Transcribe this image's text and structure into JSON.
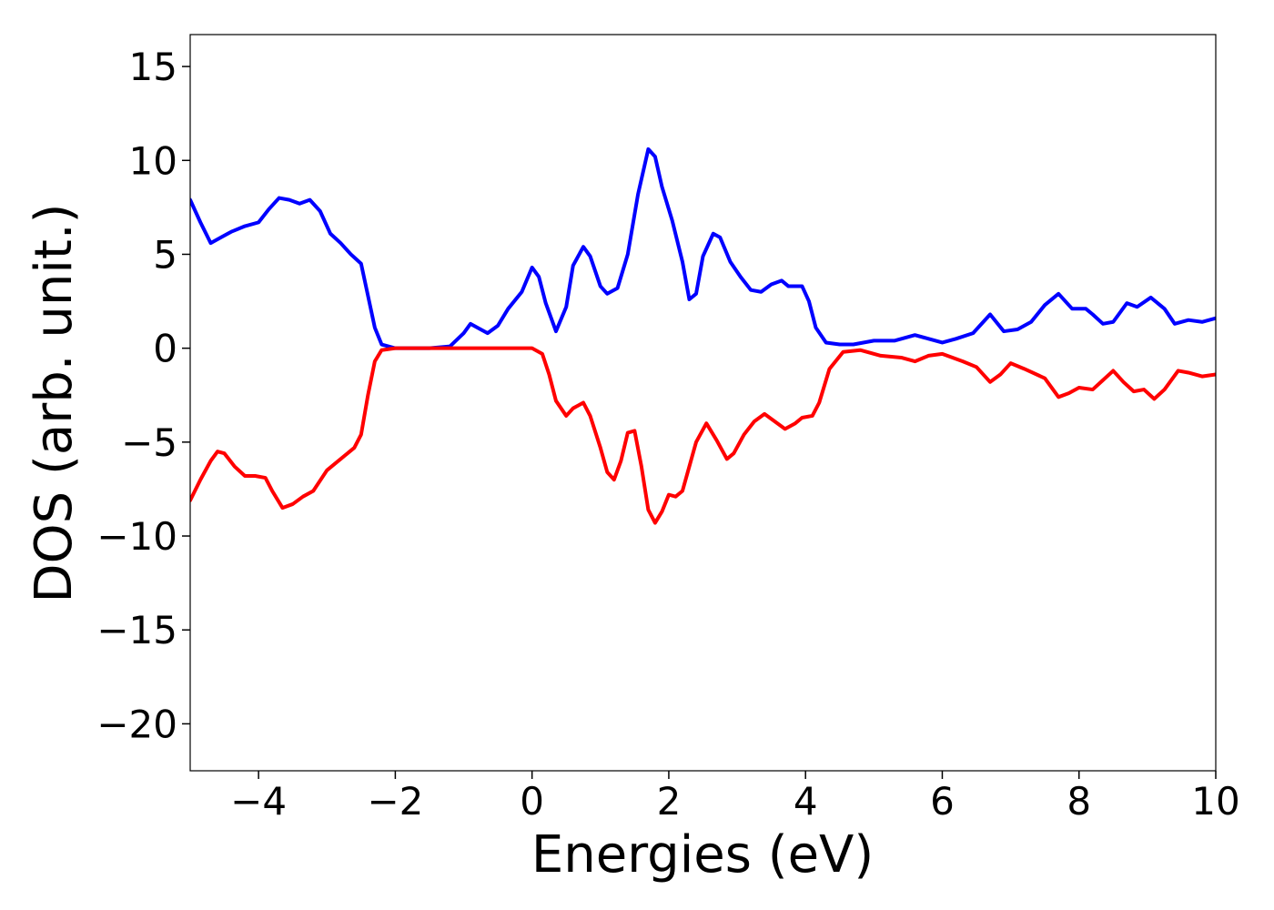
{
  "chart_data": {
    "type": "line",
    "title": "",
    "xlabel": "Energies (eV)",
    "ylabel": "DOS (arb. unit.)",
    "xlim": [
      -5,
      10
    ],
    "ylim": [
      -22.5,
      16.7
    ],
    "grid": false,
    "legend": "none",
    "xticks": [
      -4,
      -2,
      0,
      2,
      4,
      6,
      8,
      10
    ],
    "xtick_labels": [
      "−4",
      "−2",
      "0",
      "2",
      "4",
      "6",
      "8",
      "10"
    ],
    "yticks": [
      15,
      10,
      5,
      0,
      -5,
      -10,
      -15,
      -20
    ],
    "ytick_labels": [
      "15",
      "10",
      "5",
      "0",
      "−5",
      "−10",
      "−15",
      "−20"
    ],
    "series": [
      {
        "color": "#0000ff",
        "points": [
          [
            -5.0,
            7.9
          ],
          [
            -4.85,
            6.7
          ],
          [
            -4.7,
            5.6
          ],
          [
            -4.55,
            5.9
          ],
          [
            -4.4,
            6.2
          ],
          [
            -4.2,
            6.5
          ],
          [
            -4.0,
            6.7
          ],
          [
            -3.85,
            7.4
          ],
          [
            -3.7,
            8.0
          ],
          [
            -3.55,
            7.9
          ],
          [
            -3.4,
            7.7
          ],
          [
            -3.25,
            7.9
          ],
          [
            -3.1,
            7.3
          ],
          [
            -2.95,
            6.1
          ],
          [
            -2.8,
            5.6
          ],
          [
            -2.65,
            5.0
          ],
          [
            -2.5,
            4.5
          ],
          [
            -2.4,
            2.8
          ],
          [
            -2.3,
            1.1
          ],
          [
            -2.2,
            0.2
          ],
          [
            -2.0,
            0.0
          ],
          [
            -1.5,
            0.0
          ],
          [
            -1.2,
            0.1
          ],
          [
            -1.0,
            0.8
          ],
          [
            -0.9,
            1.3
          ],
          [
            -0.8,
            1.1
          ],
          [
            -0.65,
            0.8
          ],
          [
            -0.5,
            1.2
          ],
          [
            -0.35,
            2.1
          ],
          [
            -0.15,
            3.0
          ],
          [
            0.0,
            4.3
          ],
          [
            0.1,
            3.8
          ],
          [
            0.2,
            2.4
          ],
          [
            0.35,
            0.9
          ],
          [
            0.5,
            2.2
          ],
          [
            0.6,
            4.4
          ],
          [
            0.75,
            5.4
          ],
          [
            0.85,
            4.9
          ],
          [
            1.0,
            3.3
          ],
          [
            1.1,
            2.9
          ],
          [
            1.25,
            3.2
          ],
          [
            1.4,
            5.0
          ],
          [
            1.55,
            8.2
          ],
          [
            1.7,
            10.6
          ],
          [
            1.8,
            10.2
          ],
          [
            1.9,
            8.6
          ],
          [
            2.05,
            6.8
          ],
          [
            2.2,
            4.6
          ],
          [
            2.3,
            2.6
          ],
          [
            2.4,
            2.9
          ],
          [
            2.5,
            4.9
          ],
          [
            2.65,
            6.1
          ],
          [
            2.75,
            5.9
          ],
          [
            2.9,
            4.6
          ],
          [
            3.05,
            3.8
          ],
          [
            3.2,
            3.1
          ],
          [
            3.35,
            3.0
          ],
          [
            3.5,
            3.4
          ],
          [
            3.65,
            3.6
          ],
          [
            3.75,
            3.3
          ],
          [
            3.85,
            3.3
          ],
          [
            3.95,
            3.3
          ],
          [
            4.05,
            2.5
          ],
          [
            4.15,
            1.1
          ],
          [
            4.3,
            0.3
          ],
          [
            4.5,
            0.2
          ],
          [
            4.7,
            0.2
          ],
          [
            5.0,
            0.4
          ],
          [
            5.3,
            0.4
          ],
          [
            5.6,
            0.7
          ],
          [
            5.8,
            0.5
          ],
          [
            6.0,
            0.3
          ],
          [
            6.2,
            0.5
          ],
          [
            6.45,
            0.8
          ],
          [
            6.7,
            1.8
          ],
          [
            6.9,
            0.9
          ],
          [
            7.1,
            1.0
          ],
          [
            7.3,
            1.4
          ],
          [
            7.5,
            2.3
          ],
          [
            7.7,
            2.9
          ],
          [
            7.9,
            2.1
          ],
          [
            8.1,
            2.1
          ],
          [
            8.2,
            1.8
          ],
          [
            8.35,
            1.3
          ],
          [
            8.5,
            1.4
          ],
          [
            8.7,
            2.4
          ],
          [
            8.85,
            2.2
          ],
          [
            9.05,
            2.7
          ],
          [
            9.25,
            2.1
          ],
          [
            9.4,
            1.3
          ],
          [
            9.6,
            1.5
          ],
          [
            9.8,
            1.4
          ],
          [
            10.0,
            1.6
          ]
        ]
      },
      {
        "color": "#ff0000",
        "points": [
          [
            -5.0,
            -8.1
          ],
          [
            -4.85,
            -7.0
          ],
          [
            -4.7,
            -6.0
          ],
          [
            -4.6,
            -5.5
          ],
          [
            -4.5,
            -5.6
          ],
          [
            -4.35,
            -6.3
          ],
          [
            -4.2,
            -6.8
          ],
          [
            -4.05,
            -6.8
          ],
          [
            -3.9,
            -6.9
          ],
          [
            -3.8,
            -7.6
          ],
          [
            -3.65,
            -8.5
          ],
          [
            -3.5,
            -8.3
          ],
          [
            -3.35,
            -7.9
          ],
          [
            -3.2,
            -7.6
          ],
          [
            -3.0,
            -6.5
          ],
          [
            -2.8,
            -5.9
          ],
          [
            -2.6,
            -5.3
          ],
          [
            -2.5,
            -4.6
          ],
          [
            -2.4,
            -2.5
          ],
          [
            -2.3,
            -0.7
          ],
          [
            -2.2,
            -0.1
          ],
          [
            -2.0,
            0.0
          ],
          [
            0.0,
            0.0
          ],
          [
            0.15,
            -0.3
          ],
          [
            0.25,
            -1.4
          ],
          [
            0.35,
            -2.8
          ],
          [
            0.5,
            -3.6
          ],
          [
            0.6,
            -3.2
          ],
          [
            0.75,
            -2.9
          ],
          [
            0.85,
            -3.6
          ],
          [
            1.0,
            -5.3
          ],
          [
            1.1,
            -6.6
          ],
          [
            1.2,
            -7.0
          ],
          [
            1.3,
            -6.0
          ],
          [
            1.4,
            -4.5
          ],
          [
            1.5,
            -4.4
          ],
          [
            1.6,
            -6.3
          ],
          [
            1.7,
            -8.6
          ],
          [
            1.8,
            -9.3
          ],
          [
            1.9,
            -8.7
          ],
          [
            2.0,
            -7.8
          ],
          [
            2.1,
            -7.9
          ],
          [
            2.2,
            -7.6
          ],
          [
            2.3,
            -6.3
          ],
          [
            2.4,
            -5.0
          ],
          [
            2.55,
            -4.0
          ],
          [
            2.7,
            -4.9
          ],
          [
            2.85,
            -5.9
          ],
          [
            2.95,
            -5.6
          ],
          [
            3.1,
            -4.6
          ],
          [
            3.25,
            -3.9
          ],
          [
            3.4,
            -3.5
          ],
          [
            3.55,
            -3.9
          ],
          [
            3.7,
            -4.3
          ],
          [
            3.85,
            -4.0
          ],
          [
            3.95,
            -3.7
          ],
          [
            4.1,
            -3.6
          ],
          [
            4.2,
            -2.9
          ],
          [
            4.35,
            -1.1
          ],
          [
            4.55,
            -0.2
          ],
          [
            4.8,
            -0.1
          ],
          [
            5.1,
            -0.4
          ],
          [
            5.4,
            -0.5
          ],
          [
            5.6,
            -0.7
          ],
          [
            5.8,
            -0.4
          ],
          [
            6.0,
            -0.3
          ],
          [
            6.3,
            -0.7
          ],
          [
            6.5,
            -1.0
          ],
          [
            6.7,
            -1.8
          ],
          [
            6.85,
            -1.4
          ],
          [
            7.0,
            -0.8
          ],
          [
            7.2,
            -1.1
          ],
          [
            7.5,
            -1.6
          ],
          [
            7.7,
            -2.6
          ],
          [
            7.85,
            -2.4
          ],
          [
            8.0,
            -2.1
          ],
          [
            8.2,
            -2.2
          ],
          [
            8.35,
            -1.7
          ],
          [
            8.5,
            -1.2
          ],
          [
            8.65,
            -1.8
          ],
          [
            8.8,
            -2.3
          ],
          [
            8.95,
            -2.2
          ],
          [
            9.1,
            -2.7
          ],
          [
            9.25,
            -2.2
          ],
          [
            9.45,
            -1.2
          ],
          [
            9.6,
            -1.3
          ],
          [
            9.8,
            -1.5
          ],
          [
            10.0,
            -1.4
          ]
        ]
      }
    ]
  }
}
